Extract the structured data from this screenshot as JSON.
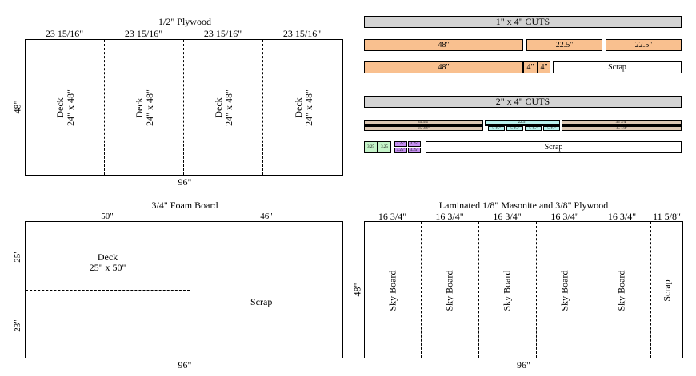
{
  "plywood": {
    "title": "1/2\" Plywood",
    "col_widths": [
      "23 15/16\"",
      "23 15/16\"",
      "23 15/16\"",
      "23 15/16\""
    ],
    "height_label": "48\"",
    "width_label": "96\"",
    "pieces": [
      {
        "name": "Deck",
        "size": "24\" x 48\""
      },
      {
        "name": "Deck",
        "size": "24\" x 48\""
      },
      {
        "name": "Deck",
        "size": "24\" x 48\""
      },
      {
        "name": "Deck",
        "size": "24\" x 48\""
      }
    ]
  },
  "foam": {
    "title": "3/4\" Foam Board",
    "top_left_label": "50\"",
    "top_right_label": "46\"",
    "left_top_label": "25\"",
    "left_bottom_label": "23\"",
    "width_label": "96\"",
    "deck_name": "Deck",
    "deck_size": "25\" x 50\"",
    "scrap_label": "Scrap"
  },
  "cuts_1x4": {
    "title": "1\" x 4\" CUTS",
    "row1": [
      "48\"",
      "22.5\"",
      "22.5\""
    ],
    "row2": [
      "48\"",
      "4\"",
      "4\"",
      "Scrap"
    ]
  },
  "cuts_2x4": {
    "title": "2\" x 4\" CUTS",
    "tan_left": [
      "35 3/4\"",
      "35 3/4\""
    ],
    "cyan_top": "22.5\"",
    "cyan_small": [
      "5.25\"",
      "5.25\"",
      "5.25\"",
      "5.25\""
    ],
    "tan_right": [
      "35 3/4\"",
      "35 3/4\""
    ],
    "green": [
      "3.25",
      "3.25"
    ],
    "purple": [
      "3.25\"",
      "3.25\"",
      "3.25\"",
      "3.25\""
    ],
    "scrap_label": "Scrap"
  },
  "masonite": {
    "title": "Laminated 1/8\" Masonite and 3/8\" Plywood",
    "col_widths": [
      "16 3/4\"",
      "16 3/4\"",
      "16 3/4\"",
      "16 3/4\"",
      "16 3/4\"",
      "11 5/8\""
    ],
    "height_label": "48\"",
    "width_label": "96\"",
    "pieces": [
      "Sky Board",
      "Sky Board",
      "Sky Board",
      "Sky Board",
      "Sky Board",
      "Scrap"
    ]
  }
}
